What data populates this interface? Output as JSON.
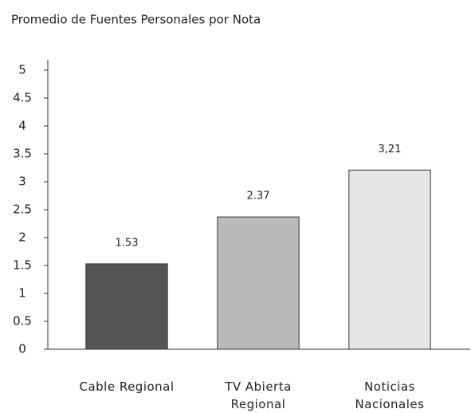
{
  "chart_data": {
    "type": "bar",
    "title": "Promedio de Fuentes Personales por Nota",
    "categories": [
      "Cable Regional",
      "TV Abierta Regional",
      "Noticias Nacionales"
    ],
    "values": [
      1.53,
      2.37,
      3.21
    ],
    "value_labels": [
      "1.53",
      "2.37",
      "3,21"
    ],
    "colors": [
      "#555555",
      "#b9babb",
      "#e6e6e6"
    ],
    "ylim": [
      0,
      5
    ],
    "yticks": [
      0,
      0.5,
      1,
      1.5,
      2,
      2.5,
      3,
      3.5,
      4,
      4.5,
      5
    ],
    "grid": false
  }
}
